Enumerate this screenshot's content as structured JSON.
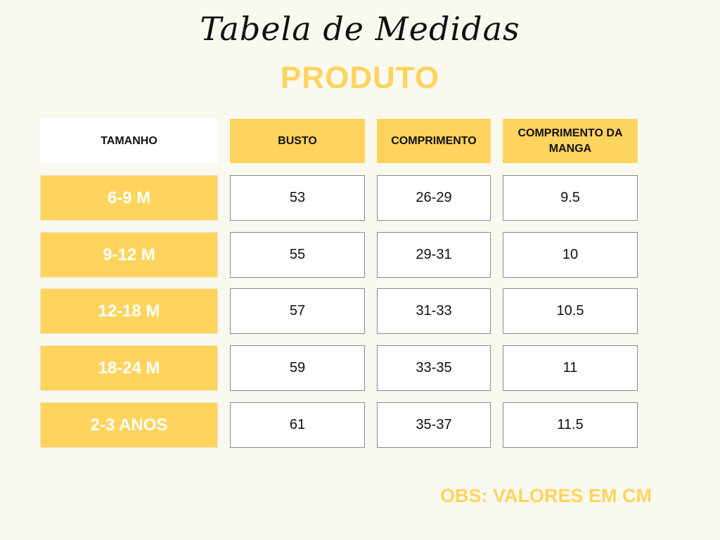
{
  "title": "Tabela de Medidas",
  "subtitle": "PRODUTO",
  "table": {
    "headers": [
      "TAMANHO",
      "BUSTO",
      "COMPRIMENTO",
      "COMPRIMENTO DA MANGA"
    ],
    "rows": [
      {
        "size": "6-9 M",
        "busto": "53",
        "comprimento": "26-29",
        "manga": "9.5"
      },
      {
        "size": "9-12 M",
        "busto": "55",
        "comprimento": "29-31",
        "manga": "10"
      },
      {
        "size": "12-18 M",
        "busto": "57",
        "comprimento": "31-33",
        "manga": "10.5"
      },
      {
        "size": "18-24 M",
        "busto": "59",
        "comprimento": "33-35",
        "manga": "11"
      },
      {
        "size": "2-3 ANOS",
        "busto": "61",
        "comprimento": "35-37",
        "manga": "11.5"
      }
    ]
  },
  "note": "OBS: VALORES EM CM",
  "colors": {
    "accent": "#ffd45e",
    "background": "#faf9f0"
  }
}
